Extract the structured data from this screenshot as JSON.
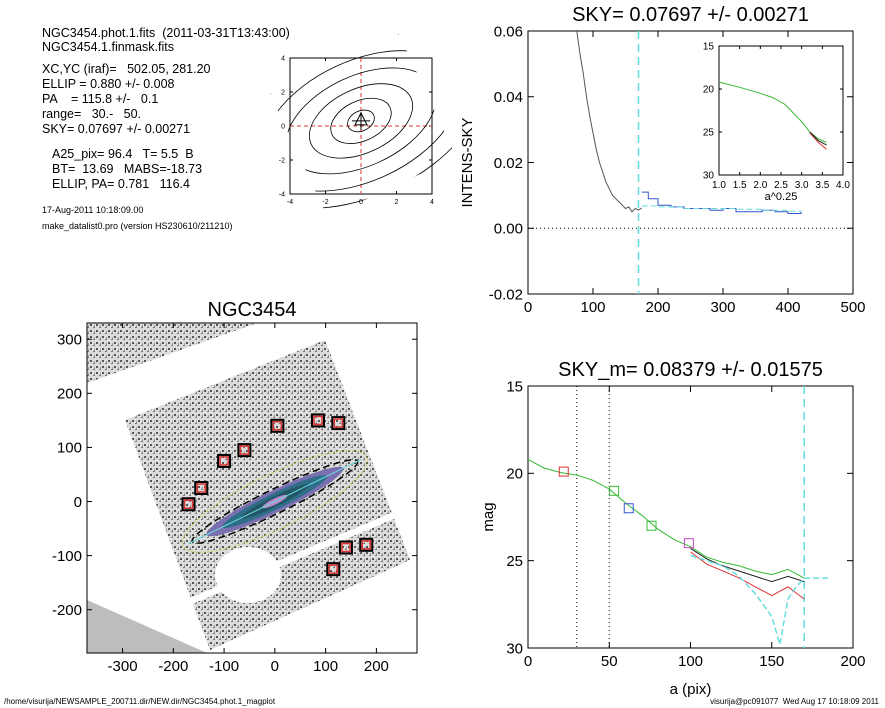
{
  "header": {
    "lines": [
      "NGC3454.phot.1.fits  (2011-03-31T13:43:00)",
      "NGC3454.1.finmask.fits",
      "XC,YC (iraf)=   502.05, 281.20",
      "ELLIP = 0.880 +/- 0.008",
      "PA    = 115.8 +/-   0.1",
      "range=   30.-   50.",
      "SKY= 0.07697 +/- 0.00271",
      "A25_pix= 96.4   T= 5.5  B",
      "BT=  13.69   MABS=-18.73",
      "ELLIP, PA= 0.781   116.4"
    ],
    "date_line": "17-Aug-2011 10:18:09.00",
    "program_line": "make_datalist0.pro (version HS230610/211210)"
  },
  "footer": {
    "path": "/home/visurija/NEWSAMPLE_200711.dir/NEW.dir/NGC3454.phot.1_magplot",
    "user": "visurija@pc091077  Wed Aug 17 10:18:09 2011"
  },
  "chart_data": [
    {
      "type": "line",
      "name": "contour-center-plot",
      "title": "",
      "x_ticks": [
        -4,
        -2,
        0,
        2,
        4
      ],
      "y_ticks": [
        -4,
        -2,
        0,
        2,
        4
      ],
      "xlim": [
        -4,
        4
      ],
      "ylim": [
        -4,
        4
      ],
      "center": [
        0,
        0.3
      ],
      "crosshair": "red dashed at x=0, y=0",
      "contours": "nested elongated ellipses, PA ~ 116 deg"
    },
    {
      "type": "line",
      "name": "intens-sky-profile",
      "title": "SKY= 0.07697 +/- 0.00271",
      "xlabel": "",
      "ylabel": "INTENS-SKY",
      "xlim": [
        0,
        500
      ],
      "ylim": [
        -0.02,
        0.06
      ],
      "x_ticks": [
        0,
        100,
        200,
        300,
        400,
        500
      ],
      "y_ticks": [
        "-0.02",
        "0.00",
        "0.02",
        "0.04",
        "0.06"
      ],
      "zero_line": 0.0,
      "sky_radius_line": 170,
      "series": [
        {
          "color": "#555555",
          "x": [
            75,
            80,
            85,
            90,
            95,
            100,
            105,
            110,
            115,
            120,
            125,
            130,
            135,
            140,
            145,
            150,
            155,
            160,
            165,
            170,
            175
          ],
          "y": [
            0.06,
            0.053,
            0.047,
            0.04,
            0.034,
            0.029,
            0.024,
            0.02,
            0.017,
            0.014,
            0.012,
            0.01,
            0.009,
            0.008,
            0.007,
            0.006,
            0.0065,
            0.005,
            0.006,
            0.0055,
            0.0062
          ]
        },
        {
          "color": "#3355cc",
          "x": [
            175,
            185,
            200,
            220,
            240,
            260,
            280,
            300,
            320,
            340,
            360,
            380,
            400,
            420
          ],
          "y": [
            0.011,
            0.009,
            0.007,
            0.0065,
            0.006,
            0.006,
            0.0055,
            0.006,
            0.005,
            0.005,
            0.0055,
            0.005,
            0.0045,
            0.005
          ]
        },
        {
          "color": "#66dddd",
          "x": [
            175,
            200,
            240,
            280,
            320,
            360,
            400,
            420
          ],
          "y": [
            0.0068,
            0.0065,
            0.006,
            0.006,
            0.0058,
            0.0055,
            0.0052,
            0.0052
          ]
        }
      ]
    },
    {
      "type": "line",
      "name": "inset-mag-vs-a025",
      "xlabel": "a^0.25",
      "xlim": [
        1.0,
        4.0
      ],
      "ylim": [
        30,
        15
      ],
      "x_ticks": [
        "1.0",
        "1.5",
        "2.0",
        "2.5",
        "3.0",
        "3.5",
        "4.0"
      ],
      "y_ticks": [
        15,
        20,
        25,
        30
      ],
      "series": [
        {
          "color": "#33bb33",
          "x": [
            1.0,
            1.5,
            2.0,
            2.3,
            2.6,
            2.8,
            3.0,
            3.2,
            3.4,
            3.6
          ],
          "y": [
            19.2,
            19.8,
            20.5,
            21.0,
            21.8,
            22.8,
            23.8,
            25.0,
            25.8,
            26.2
          ]
        },
        {
          "color": "#dd3333",
          "x": [
            3.2,
            3.4,
            3.6
          ],
          "y": [
            25.1,
            26.2,
            27.0
          ]
        },
        {
          "color": "#222222",
          "x": [
            3.2,
            3.4,
            3.6
          ],
          "y": [
            25.0,
            26.0,
            26.5
          ]
        }
      ]
    },
    {
      "type": "scatter",
      "name": "galaxy-image",
      "title": "NGC3454",
      "xlim": [
        -370,
        280
      ],
      "ylim": [
        -280,
        330
      ],
      "x_ticks": [
        -300,
        -200,
        -100,
        0,
        100,
        200
      ],
      "y_ticks": [
        -200,
        -100,
        0,
        100,
        200,
        300
      ],
      "masked_star_boxes": [
        [
          -170,
          -5
        ],
        [
          -145,
          25
        ],
        [
          -100,
          75
        ],
        [
          -60,
          95
        ],
        [
          5,
          140
        ],
        [
          85,
          150
        ],
        [
          125,
          145
        ],
        [
          115,
          -125
        ],
        [
          140,
          -85
        ],
        [
          180,
          -80
        ]
      ]
    },
    {
      "type": "line",
      "name": "mag-profile",
      "title": "SKY_m=  0.08379 +/- 0.01575",
      "xlabel": "a (pix)",
      "ylabel": "mag",
      "xlim": [
        0,
        200
      ],
      "ylim": [
        30,
        15
      ],
      "x_ticks": [
        0,
        50,
        100,
        150,
        200
      ],
      "y_ticks": [
        15,
        20,
        25,
        30
      ],
      "vlines_dotted": [
        30,
        50
      ],
      "vline_dashed": 170,
      "series": [
        {
          "color": "#33bb33",
          "x": [
            0,
            10,
            20,
            30,
            40,
            50,
            60,
            70,
            80,
            90,
            100,
            110,
            120,
            130,
            140,
            150,
            160,
            170
          ],
          "y": [
            19.2,
            19.7,
            19.95,
            20.1,
            20.4,
            20.9,
            21.7,
            22.4,
            23.2,
            23.8,
            24.2,
            24.8,
            25.1,
            25.3,
            25.6,
            25.8,
            25.5,
            26.0
          ]
        },
        {
          "color": "#222222",
          "x": [
            100,
            110,
            120,
            130,
            140,
            150,
            160,
            170
          ],
          "y": [
            24.3,
            24.9,
            25.3,
            25.6,
            25.9,
            26.2,
            25.9,
            26.2
          ]
        },
        {
          "color": "#dd3333",
          "x": [
            100,
            110,
            120,
            130,
            140,
            150,
            160,
            170
          ],
          "y": [
            24.5,
            25.2,
            25.6,
            26.0,
            26.5,
            27.0,
            26.5,
            27.2
          ]
        },
        {
          "color": "#66dddd",
          "x": [
            100,
            120,
            130,
            140,
            150,
            155,
            160,
            165,
            170,
            185
          ],
          "y": [
            24.7,
            25.3,
            25.9,
            26.9,
            28.2,
            29.8,
            27.2,
            26.5,
            26.0,
            26.0
          ]
        }
      ],
      "marker_boxes": [
        {
          "x": 22,
          "y": 19.9,
          "color": "#dd3333"
        },
        {
          "x": 53,
          "y": 21.0,
          "color": "#33bb33"
        },
        {
          "x": 62,
          "y": 22.0,
          "color": "#3355cc"
        },
        {
          "x": 76,
          "y": 23.0,
          "color": "#33bb33"
        },
        {
          "x": 99,
          "y": 24.0,
          "color": "#cc44cc"
        }
      ]
    }
  ]
}
